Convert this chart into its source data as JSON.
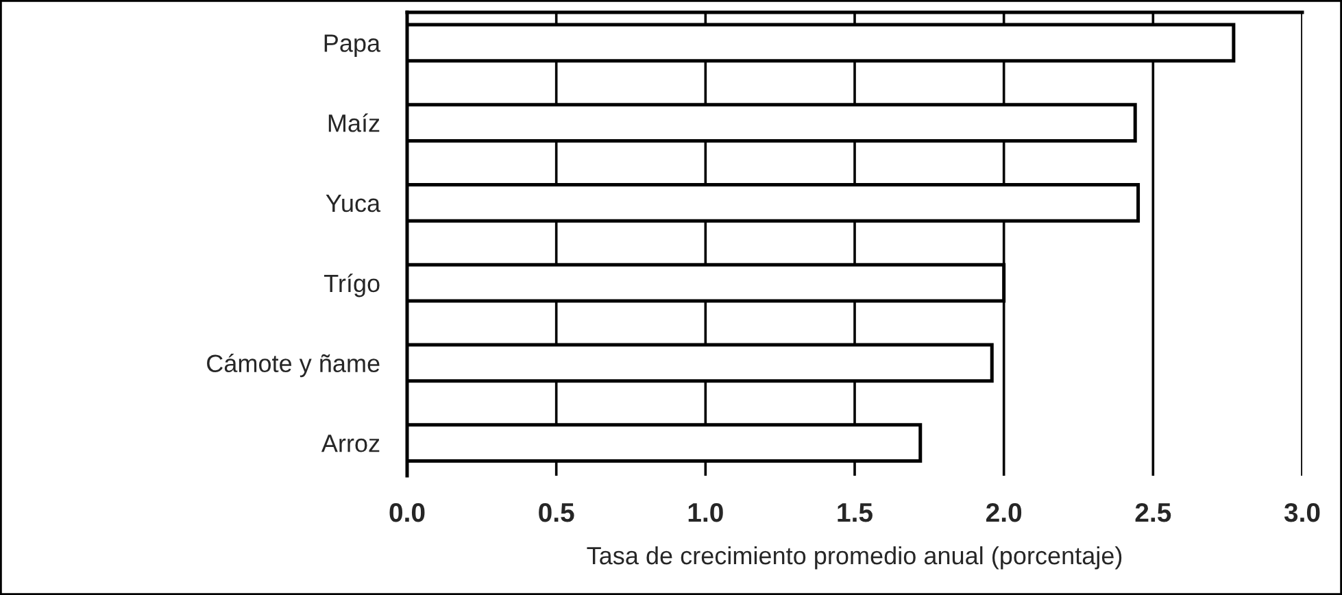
{
  "chart_data": {
    "type": "bar",
    "orientation": "horizontal",
    "categories": [
      "Papa",
      "Maíz",
      "Yuca",
      "Trígo",
      "Cámote y ñame",
      "Arroz"
    ],
    "values": [
      2.77,
      2.44,
      2.45,
      2.0,
      1.96,
      1.72
    ],
    "color": "#ffffff",
    "xlabel": "Tasa de crecimiento promedio anual (porcentaje)",
    "xlim": [
      0,
      3.0
    ],
    "xticks": [
      {
        "value": 0,
        "label": "0.0"
      },
      {
        "value": 0.5,
        "label": "0.5"
      },
      {
        "value": 1.0,
        "label": "1.0"
      },
      {
        "value": 1.5,
        "label": "1.5"
      },
      {
        "value": 2.0,
        "label": "2.0"
      },
      {
        "value": 2.5,
        "label": "2.5"
      },
      {
        "value": 3.0,
        "label": "3.0"
      }
    ],
    "grid": "x"
  }
}
